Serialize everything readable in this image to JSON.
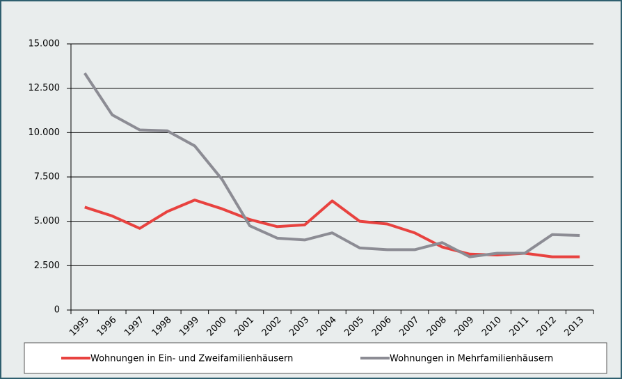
{
  "chart_data": {
    "type": "line",
    "categories": [
      "1995",
      "1996",
      "1997",
      "1998",
      "1999",
      "2000",
      "2001",
      "2002",
      "2003",
      "2004",
      "2005",
      "2006",
      "2007",
      "2008",
      "2009",
      "2010",
      "2011",
      "2012",
      "2013"
    ],
    "series": [
      {
        "name": "Wohnungen in Ein- und Zweifamilienhäusern",
        "color": "#e8423f",
        "values": [
          5800,
          5300,
          4600,
          5550,
          6200,
          5700,
          5100,
          4700,
          4800,
          6150,
          5000,
          4850,
          4350,
          3550,
          3150,
          3100,
          3200,
          3000,
          3000
        ]
      },
      {
        "name": "Wohnungen in Mehrfamilienhäusern",
        "color": "#8c8c94",
        "values": [
          13350,
          11000,
          10150,
          10100,
          9250,
          7350,
          4750,
          4050,
          3950,
          4350,
          3500,
          3400,
          3400,
          3800,
          3000,
          3200,
          3200,
          4250,
          4200
        ]
      }
    ],
    "ylim": [
      0,
      15000
    ],
    "yticks": [
      0,
      {
        "value": 2500,
        "label": "2.500"
      },
      {
        "value": 5000,
        "label": "5.000"
      },
      {
        "value": 7500,
        "label": "7.500"
      },
      {
        "value": 10000,
        "label": "10.000"
      },
      {
        "value": 12500,
        "label": "12.500"
      },
      {
        "value": 15000,
        "label": "15.000"
      }
    ],
    "grid": true
  }
}
